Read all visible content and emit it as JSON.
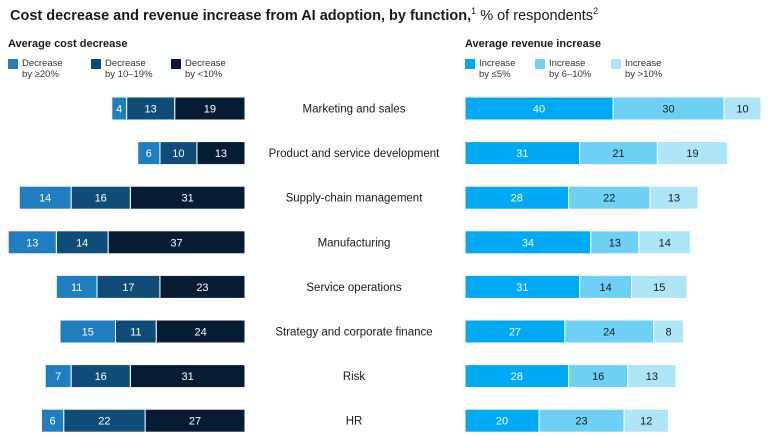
{
  "title": {
    "main": "Cost decrease and revenue increase from AI adoption, by function,",
    "main_sup": "1",
    "sub": " % of respondents",
    "sub_sup": "2"
  },
  "chart_data": [
    {
      "type": "bar",
      "orientation": "horizontal-stacked",
      "title": "Average cost decrease",
      "direction": "right-to-left",
      "categories": [
        "Marketing and sales",
        "Product and service development",
        "Supply-chain management",
        "Manufacturing",
        "Service operations",
        "Strategy and corporate finance",
        "Risk",
        "HR"
      ],
      "series": [
        {
          "name": "Decrease by ≥20%",
          "legend_lines": [
            "Decrease",
            "by ≥20%"
          ],
          "color": "#1f7ebf",
          "text_color": "#ffffff",
          "values": [
            4,
            6,
            14,
            13,
            11,
            15,
            7,
            6
          ]
        },
        {
          "name": "Decrease by 10–19%",
          "legend_lines": [
            "Decrease",
            "by 10–19%"
          ],
          "color": "#0f4c78",
          "text_color": "#ffffff",
          "values": [
            13,
            10,
            16,
            14,
            17,
            11,
            16,
            22
          ]
        },
        {
          "name": "Decrease by <10%",
          "legend_lines": [
            "Decrease",
            "by <10%"
          ],
          "color": "#071c33",
          "text_color": "#ffffff",
          "values": [
            19,
            13,
            31,
            37,
            23,
            24,
            31,
            27
          ]
        }
      ]
    },
    {
      "type": "bar",
      "orientation": "horizontal-stacked",
      "title": "Average revenue increase",
      "direction": "left-to-right",
      "categories": [
        "Marketing and sales",
        "Product and service development",
        "Supply-chain management",
        "Manufacturing",
        "Service operations",
        "Strategy and corporate finance",
        "Risk",
        "HR"
      ],
      "series": [
        {
          "name": "Increase by ≤5%",
          "legend_lines": [
            "Increase",
            "by ≤5%"
          ],
          "color": "#00a9f4",
          "text_color": "#ffffff",
          "values": [
            40,
            31,
            28,
            34,
            31,
            27,
            28,
            20
          ]
        },
        {
          "name": "Increase by 6–10%",
          "legend_lines": [
            "Increase",
            "by 6–10%"
          ],
          "color": "#6fd0f5",
          "text_color": "#1a1a1a",
          "values": [
            30,
            21,
            22,
            13,
            14,
            24,
            16,
            23
          ]
        },
        {
          "name": "Increase by >10%",
          "legend_lines": [
            "Increase",
            "by >10%"
          ],
          "color": "#aee6f7",
          "text_color": "#1a1a1a",
          "values": [
            10,
            19,
            13,
            14,
            15,
            8,
            13,
            12
          ]
        }
      ]
    }
  ]
}
